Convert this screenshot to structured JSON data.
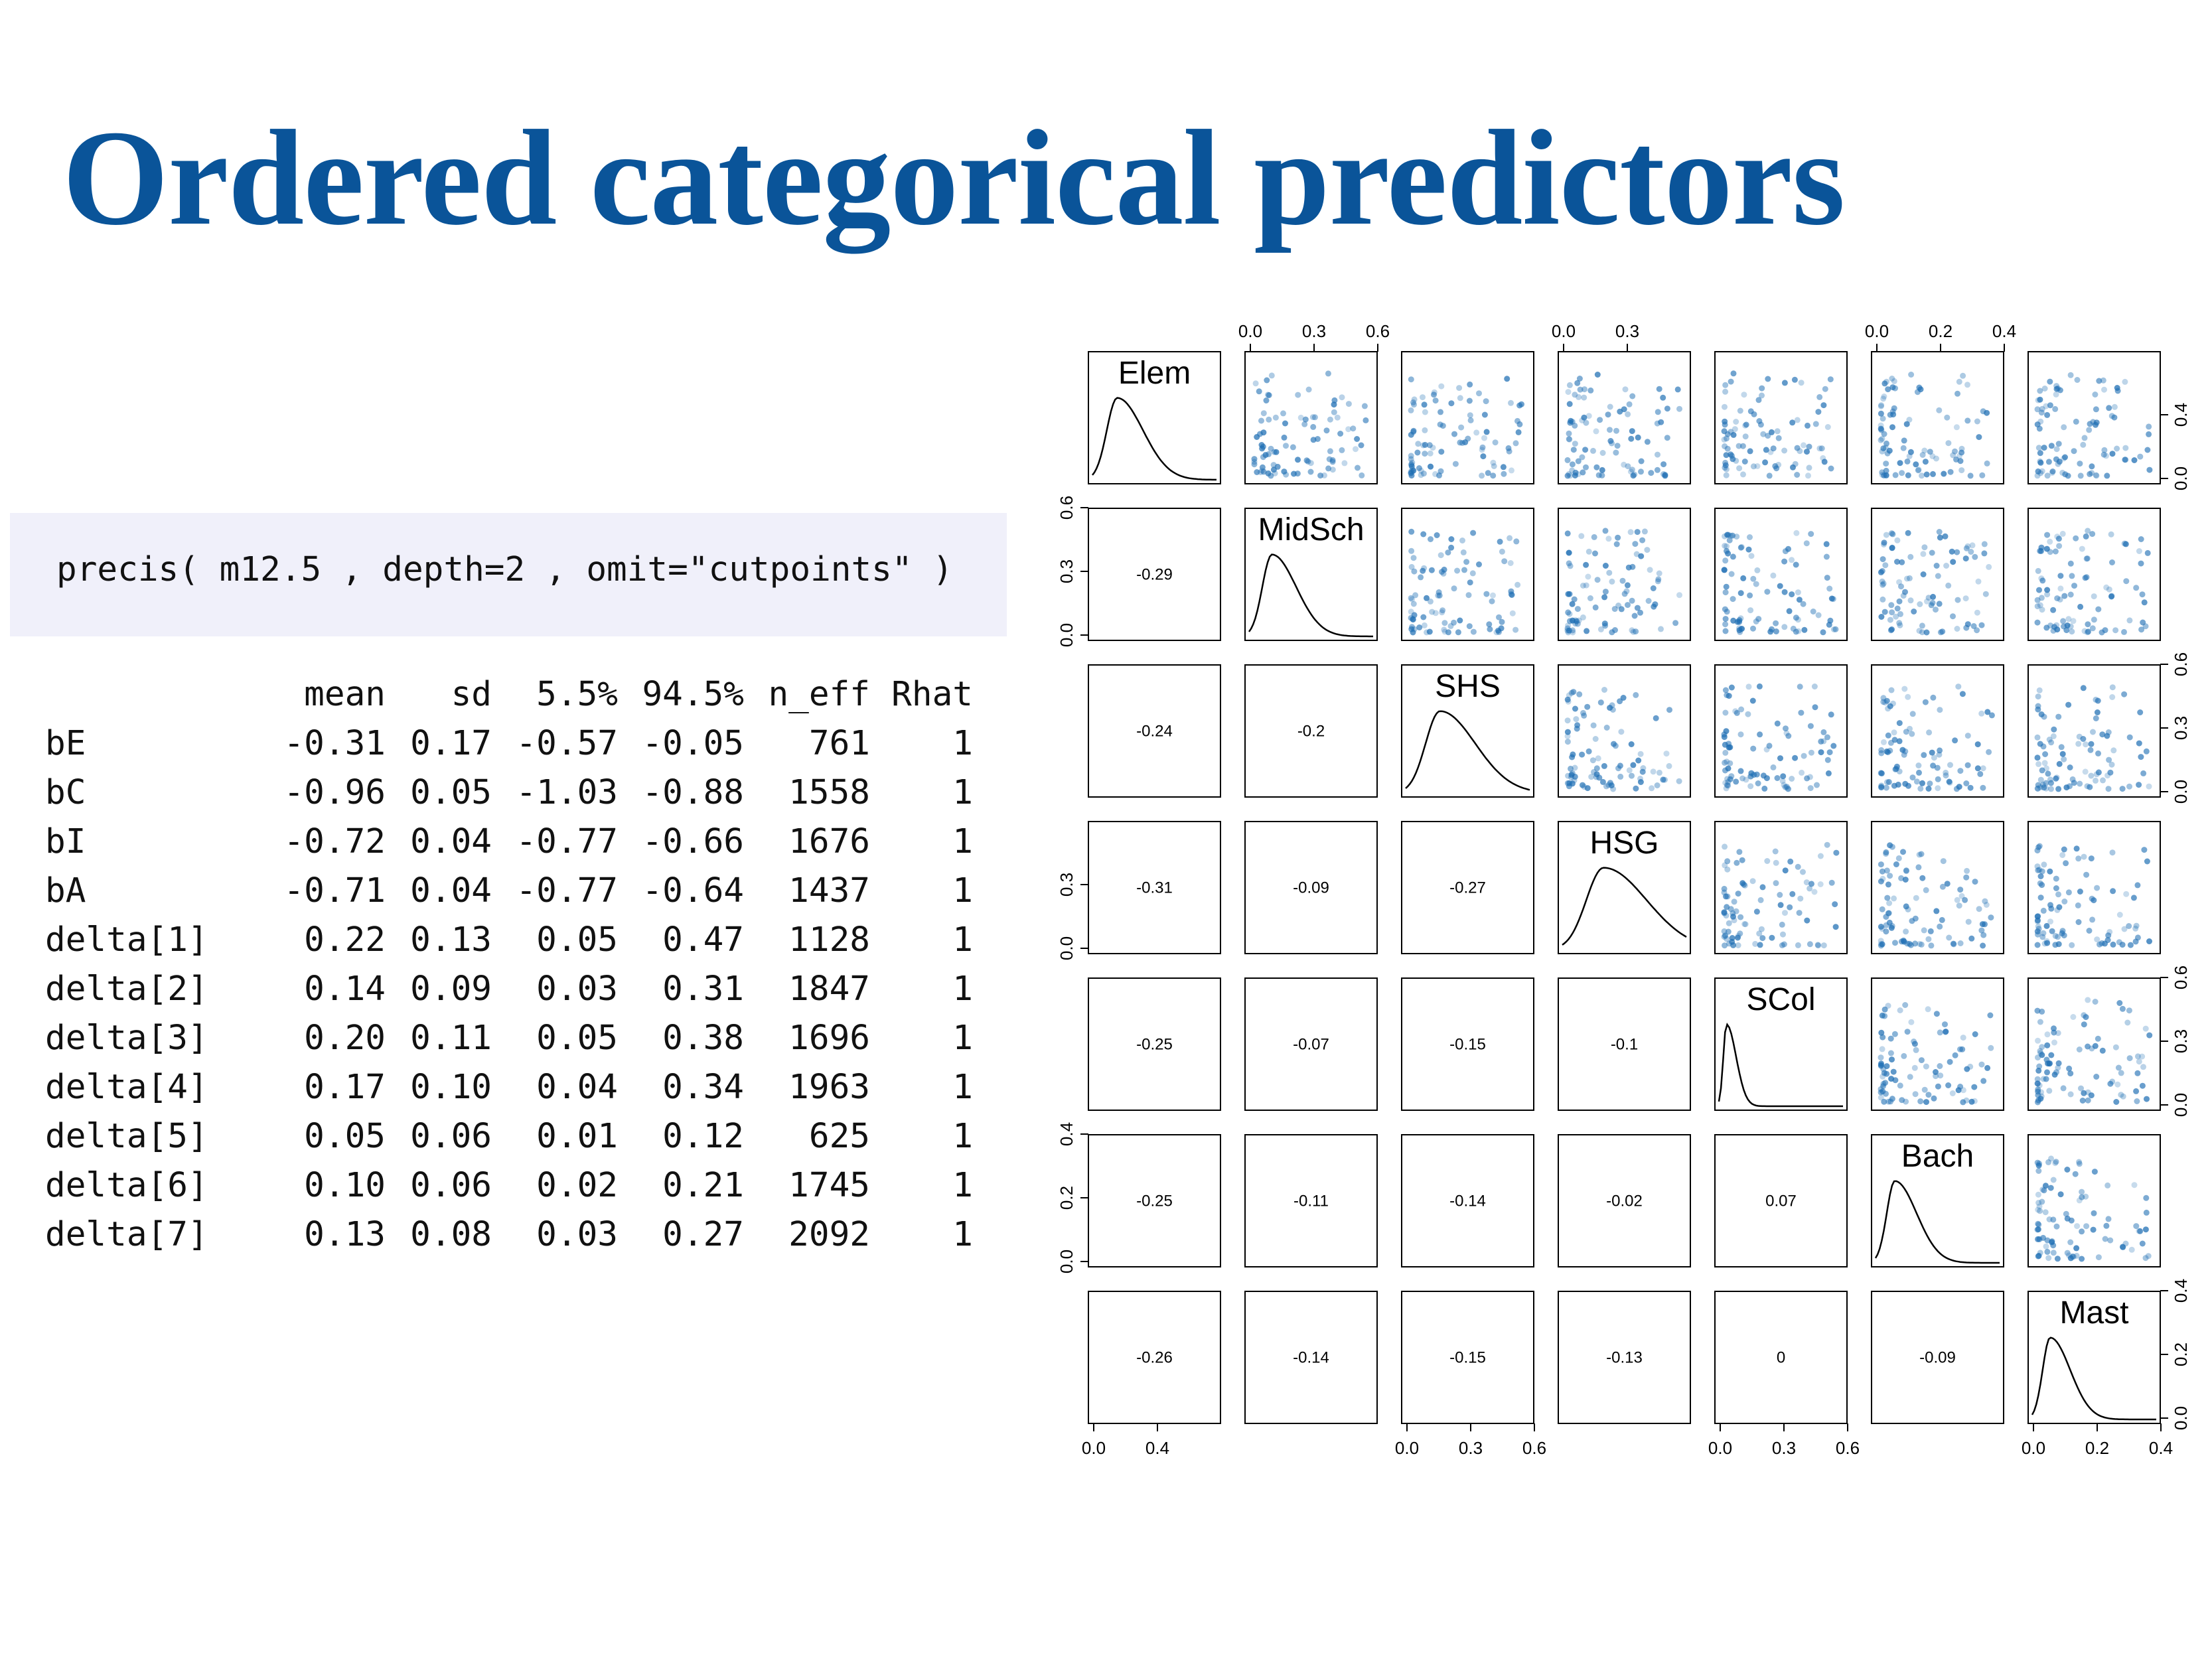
{
  "slide": {
    "title": "Ordered categorical predictors",
    "code": "precis( m12.5 , depth=2 , omit=\"cutpoints\" )"
  },
  "precis_table": {
    "columns": [
      "",
      "mean",
      "sd",
      "5.5%",
      "94.5%",
      "n_eff",
      "Rhat"
    ],
    "rows": [
      {
        "name": "bE",
        "mean": "-0.31",
        "sd": "0.17",
        "lo": "-0.57",
        "hi": "-0.05",
        "n_eff": "761",
        "rhat": "1"
      },
      {
        "name": "bC",
        "mean": "-0.96",
        "sd": "0.05",
        "lo": "-1.03",
        "hi": "-0.88",
        "n_eff": "1558",
        "rhat": "1"
      },
      {
        "name": "bI",
        "mean": "-0.72",
        "sd": "0.04",
        "lo": "-0.77",
        "hi": "-0.66",
        "n_eff": "1676",
        "rhat": "1"
      },
      {
        "name": "bA",
        "mean": "-0.71",
        "sd": "0.04",
        "lo": "-0.77",
        "hi": "-0.64",
        "n_eff": "1437",
        "rhat": "1"
      },
      {
        "name": "delta[1]",
        "mean": "0.22",
        "sd": "0.13",
        "lo": "0.05",
        "hi": "0.47",
        "n_eff": "1128",
        "rhat": "1"
      },
      {
        "name": "delta[2]",
        "mean": "0.14",
        "sd": "0.09",
        "lo": "0.03",
        "hi": "0.31",
        "n_eff": "1847",
        "rhat": "1"
      },
      {
        "name": "delta[3]",
        "mean": "0.20",
        "sd": "0.11",
        "lo": "0.05",
        "hi": "0.38",
        "n_eff": "1696",
        "rhat": "1"
      },
      {
        "name": "delta[4]",
        "mean": "0.17",
        "sd": "0.10",
        "lo": "0.04",
        "hi": "0.34",
        "n_eff": "1963",
        "rhat": "1"
      },
      {
        "name": "delta[5]",
        "mean": "0.05",
        "sd": "0.06",
        "lo": "0.01",
        "hi": "0.12",
        "n_eff": "625",
        "rhat": "1"
      },
      {
        "name": "delta[6]",
        "mean": "0.10",
        "sd": "0.06",
        "lo": "0.02",
        "hi": "0.21",
        "n_eff": "1745",
        "rhat": "1"
      },
      {
        "name": "delta[7]",
        "mean": "0.13",
        "sd": "0.08",
        "lo": "0.03",
        "hi": "0.27",
        "n_eff": "2092",
        "rhat": "1"
      }
    ]
  },
  "chart_data": {
    "type": "scatter",
    "variables": [
      "Elem",
      "MidSch",
      "SHS",
      "HSG",
      "SCol",
      "Bach",
      "Mast"
    ],
    "correlations": [
      [
        null,
        null,
        null,
        null,
        null,
        null,
        null
      ],
      [
        "-0.29",
        null,
        null,
        null,
        null,
        null,
        null
      ],
      [
        "-0.24",
        "-0.2",
        null,
        null,
        null,
        null,
        null
      ],
      [
        "-0.31",
        "-0.09",
        "-0.27",
        null,
        null,
        null,
        null
      ],
      [
        "-0.25",
        "-0.07",
        "-0.15",
        "-0.1",
        null,
        null,
        null
      ],
      [
        "-0.25",
        "-0.11",
        "-0.14",
        "-0.02",
        "0.07",
        null,
        null
      ],
      [
        "-0.26",
        "-0.14",
        "-0.15",
        "-0.13",
        "0",
        "-0.09",
        null
      ]
    ],
    "marginal_ranges": [
      [
        0,
        0.75
      ],
      [
        0,
        0.65
      ],
      [
        0,
        0.65
      ],
      [
        0,
        0.45
      ],
      [
        0,
        0.65
      ],
      [
        0,
        0.45
      ],
      [
        0,
        0.55
      ]
    ],
    "density_modes": [
      0.15,
      0.12,
      0.18,
      0.15,
      0.04,
      0.07,
      0.08
    ],
    "top_axes": [
      {
        "col": 1,
        "ticks": [
          "0.0",
          "0.3",
          "0.6"
        ]
      },
      {
        "col": 3,
        "ticks": [
          "0.0",
          "0.3"
        ]
      },
      {
        "col": 5,
        "ticks": [
          "0.0",
          "0.2",
          "0.4"
        ]
      }
    ],
    "bottom_axes": [
      {
        "col": 0,
        "ticks": [
          "0.0",
          "0.4"
        ]
      },
      {
        "col": 2,
        "ticks": [
          "0.0",
          "0.3",
          "0.6"
        ]
      },
      {
        "col": 4,
        "ticks": [
          "0.0",
          "0.3",
          "0.6"
        ]
      },
      {
        "col": 6,
        "ticks": [
          "0.0",
          "0.2",
          "0.4"
        ]
      }
    ],
    "left_axes": [
      {
        "row": 1,
        "ticks": [
          "0.0",
          "0.3",
          "0.6"
        ]
      },
      {
        "row": 3,
        "ticks": [
          "0.0",
          "0.3"
        ]
      },
      {
        "row": 5,
        "ticks": [
          "0.0",
          "0.2",
          "0.4"
        ]
      }
    ],
    "right_axes": [
      {
        "row": 0,
        "ticks": [
          "0.0",
          "0.4"
        ]
      },
      {
        "row": 2,
        "ticks": [
          "0.0",
          "0.3",
          "0.6"
        ]
      },
      {
        "row": 4,
        "ticks": [
          "0.0",
          "0.3",
          "0.6"
        ]
      },
      {
        "row": 6,
        "ticks": [
          "0.0",
          "0.2",
          "0.4"
        ]
      }
    ],
    "point_color": "#1f6fb4",
    "line_color": "#000000"
  }
}
